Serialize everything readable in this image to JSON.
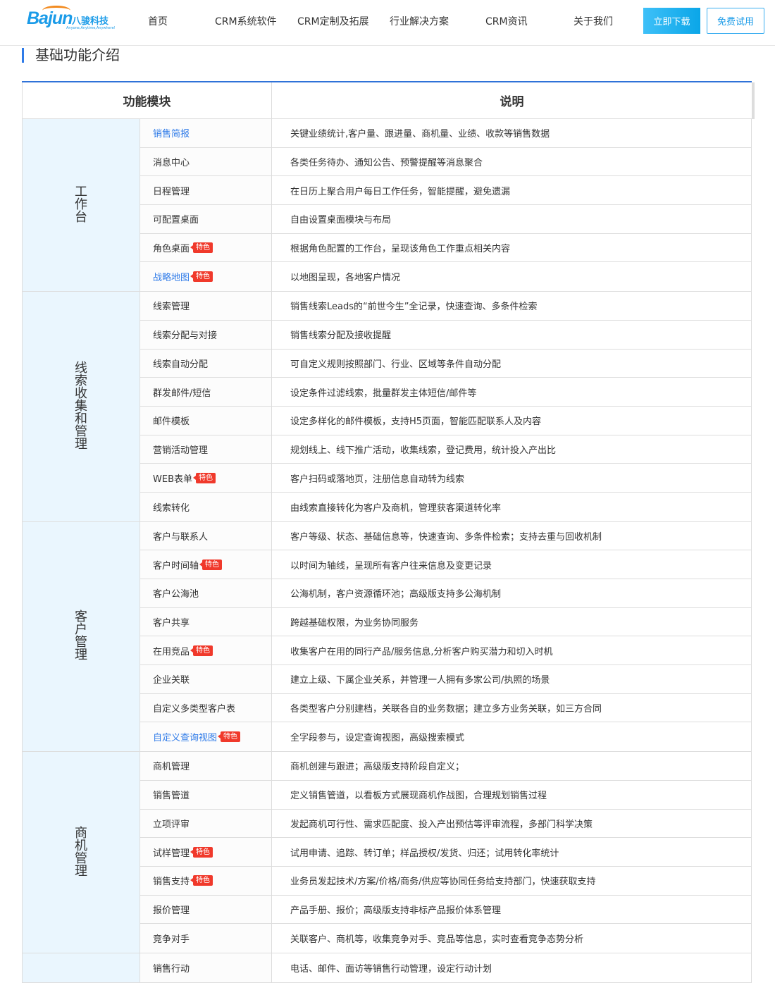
{
  "nav": {
    "logo": {
      "brand": "Bajun",
      "cn": "八骏科技",
      "slogan": "Anyone,Anytime,Anywhere!"
    },
    "items": [
      "首页",
      "CRM系统软件",
      "CRM定制及拓展",
      "行业解决方案",
      "CRM资讯",
      "关于我们"
    ],
    "download": "立即下载",
    "trial": "免费试用"
  },
  "section_title": "基础功能介绍",
  "table": {
    "headers": [
      "功能模块",
      "说明"
    ],
    "tag_label": "特色",
    "groups": [
      {
        "label": "工作台",
        "rows": [
          {
            "name": "销售简报",
            "link": true,
            "tag": false,
            "desc": "关键业绩统计,客户量、跟进量、商机量、业绩、收款等销售数据"
          },
          {
            "name": "消息中心",
            "link": false,
            "tag": false,
            "desc": "各类任务待办、通知公告、预警提醒等消息聚合"
          },
          {
            "name": "日程管理",
            "link": false,
            "tag": false,
            "desc": "在日历上聚合用户每日工作任务，智能提醒，避免遗漏"
          },
          {
            "name": "可配置桌面",
            "link": false,
            "tag": false,
            "desc": "自由设置桌面模块与布局"
          },
          {
            "name": "角色桌面",
            "link": false,
            "tag": true,
            "desc": "根据角色配置的工作台，呈现该角色工作重点相关内容"
          },
          {
            "name": "战略地图",
            "link": true,
            "tag": true,
            "desc": "以地图呈现，各地客户情况"
          }
        ]
      },
      {
        "label": "线索收集和管理",
        "rows": [
          {
            "name": "线索管理",
            "link": false,
            "tag": false,
            "desc": "销售线索Leads的“前世今生”全记录，快速查询、多条件检索"
          },
          {
            "name": "线索分配与对接",
            "link": false,
            "tag": false,
            "desc": "销售线索分配及接收提醒"
          },
          {
            "name": "线索自动分配",
            "link": false,
            "tag": false,
            "desc": "可自定义规则按照部门、行业、区域等条件自动分配"
          },
          {
            "name": "群发邮件/短信",
            "link": false,
            "tag": false,
            "desc": "设定条件过滤线索，批量群发主体短信/邮件等"
          },
          {
            "name": "邮件模板",
            "link": false,
            "tag": false,
            "desc": "设定多样化的邮件模板，支持H5页面，智能匹配联系人及内容"
          },
          {
            "name": "营销活动管理",
            "link": false,
            "tag": false,
            "desc": "规划线上、线下推广活动，收集线索，登记费用，统计投入产出比"
          },
          {
            "name": "WEB表单",
            "link": false,
            "tag": true,
            "desc": "客户扫码或落地页，注册信息自动转为线索"
          },
          {
            "name": "线索转化",
            "link": false,
            "tag": false,
            "desc": "由线索直接转化为客户及商机，管理获客渠道转化率"
          }
        ]
      },
      {
        "label": "客户管理",
        "rows": [
          {
            "name": "客户与联系人",
            "link": false,
            "tag": false,
            "desc": "客户等级、状态、基础信息等，快速查询、多条件检索；支持去重与回收机制"
          },
          {
            "name": "客户时间轴",
            "link": false,
            "tag": true,
            "desc": "以时间为轴线，呈现所有客户往来信息及变更记录"
          },
          {
            "name": "客户公海池",
            "link": false,
            "tag": false,
            "desc": "公海机制，客户资源循环池；高级版支持多公海机制"
          },
          {
            "name": "客户共享",
            "link": false,
            "tag": false,
            "desc": "跨越基础权限，为业务协同服务"
          },
          {
            "name": "在用竞品",
            "link": false,
            "tag": true,
            "desc": "收集客户在用的同行产品/服务信息,分析客户购买潜力和切入时机"
          },
          {
            "name": "企业关联",
            "link": false,
            "tag": false,
            "desc": "建立上级、下属企业关系，并管理一人拥有多家公司/执照的场景"
          },
          {
            "name": "自定义多类型客户表",
            "link": false,
            "tag": false,
            "desc": "各类型客户分别建档，关联各自的业务数据；建立多方业务关联，如三方合同"
          },
          {
            "name": "自定义查询视图",
            "link": true,
            "tag": true,
            "desc": "全字段参与，设定查询视图，高级搜索模式"
          }
        ]
      },
      {
        "label": "商机管理",
        "rows": [
          {
            "name": "商机管理",
            "link": false,
            "tag": false,
            "desc": "商机创建与跟进；高级版支持阶段自定义；"
          },
          {
            "name": "销售管道",
            "link": false,
            "tag": false,
            "desc": "定义销售管道，以看板方式展现商机作战图，合理规划销售过程"
          },
          {
            "name": "立项评审",
            "link": false,
            "tag": false,
            "desc": "发起商机可行性、需求匹配度、投入产出预估等评审流程，多部门科学决策"
          },
          {
            "name": "试样管理",
            "link": false,
            "tag": true,
            "desc": "试用申请、追踪、转订单；样品授权/发货、归还；试用转化率统计"
          },
          {
            "name": "销售支持",
            "link": false,
            "tag": true,
            "desc": "业务员发起技术/方案/价格/商务/供应等协同任务给支持部门，快速获取支持"
          },
          {
            "name": "报价管理",
            "link": false,
            "tag": false,
            "desc": "产品手册、报价；高级版支持非标产品报价体系管理"
          },
          {
            "name": "竞争对手",
            "link": false,
            "tag": false,
            "desc": "关联客户、商机等，收集竞争对手、竞品等信息，实时查看竞争态势分析"
          }
        ]
      },
      {
        "label": "",
        "rows": [
          {
            "name": "销售行动",
            "link": false,
            "tag": false,
            "desc": "电话、邮件、面访等销售行动管理，设定行动计划"
          }
        ]
      }
    ]
  }
}
